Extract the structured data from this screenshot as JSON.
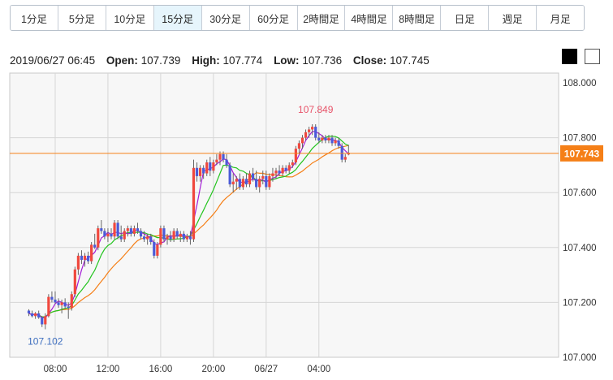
{
  "tabs": [
    {
      "label": "1分足",
      "active": false
    },
    {
      "label": "5分足",
      "active": false
    },
    {
      "label": "10分足",
      "active": false
    },
    {
      "label": "15分足",
      "active": true
    },
    {
      "label": "30分足",
      "active": false
    },
    {
      "label": "60分足",
      "active": false
    },
    {
      "label": "2時間足",
      "active": false
    },
    {
      "label": "4時間足",
      "active": false
    },
    {
      "label": "8時間足",
      "active": false
    },
    {
      "label": "日足",
      "active": false
    },
    {
      "label": "週足",
      "active": false
    },
    {
      "label": "月足",
      "active": false
    }
  ],
  "ohlc": {
    "datetime": "2019/06/27 06:45",
    "open_label": "Open:",
    "open": "107.739",
    "high_label": "High:",
    "high": "107.774",
    "low_label": "Low:",
    "low": "107.736",
    "close_label": "Close:",
    "close": "107.745"
  },
  "background_toggle": [
    "black",
    "white"
  ],
  "chart_data": {
    "type": "candlestick",
    "ylim": [
      107.0,
      108.0
    ],
    "y_ticks": [
      "107.000",
      "107.200",
      "107.400",
      "107.600",
      "107.800",
      "108.000"
    ],
    "x_ticks": [
      {
        "label": "08:00",
        "index": 8
      },
      {
        "label": "12:00",
        "index": 24
      },
      {
        "label": "16:00",
        "index": 40
      },
      {
        "label": "20:00",
        "index": 56
      },
      {
        "label": "06/27",
        "index": 72
      },
      {
        "label": "04:00",
        "index": 88
      }
    ],
    "current_price": {
      "label": "107.743",
      "value": 107.743
    },
    "annotations": [
      {
        "text": "107.849",
        "value": 107.849,
        "index": 87,
        "color": "#e8546a"
      },
      {
        "text": "107.102",
        "value": 107.102,
        "index": 5,
        "color": "#3f6fbf"
      }
    ],
    "colors": {
      "up": "#f0483e",
      "down": "#4b5bd8",
      "ma_short": "#a41ed6",
      "ma_mid": "#23c41e",
      "ma_long": "#f57f17",
      "price_line": "#f57f17"
    },
    "x_start_index": -0.5,
    "candles": [
      [
        107.17,
        107.175,
        107.15,
        107.16
      ],
      [
        107.16,
        107.17,
        107.145,
        107.15
      ],
      [
        107.15,
        107.165,
        107.14,
        107.16
      ],
      [
        107.16,
        107.17,
        107.14,
        107.145
      ],
      [
        107.145,
        107.15,
        107.11,
        107.12
      ],
      [
        107.12,
        107.16,
        107.102,
        107.15
      ],
      [
        107.15,
        107.23,
        107.145,
        107.22
      ],
      [
        107.22,
        107.24,
        107.2,
        107.21
      ],
      [
        107.21,
        107.24,
        107.195,
        107.2
      ],
      [
        107.2,
        107.215,
        107.18,
        107.19
      ],
      [
        107.19,
        107.21,
        107.16,
        107.2
      ],
      [
        107.2,
        107.215,
        107.175,
        107.185
      ],
      [
        107.185,
        107.2,
        107.14,
        107.18
      ],
      [
        107.18,
        107.24,
        107.17,
        107.23
      ],
      [
        107.23,
        107.33,
        107.22,
        107.32
      ],
      [
        107.32,
        107.38,
        107.3,
        107.37
      ],
      [
        107.37,
        107.39,
        107.34,
        107.355
      ],
      [
        107.355,
        107.38,
        107.33,
        107.37
      ],
      [
        107.37,
        107.385,
        107.34,
        107.35
      ],
      [
        107.35,
        107.42,
        107.34,
        107.41
      ],
      [
        107.41,
        107.45,
        107.395,
        107.4
      ],
      [
        107.4,
        107.48,
        107.39,
        107.47
      ],
      [
        107.47,
        107.5,
        107.45,
        107.46
      ],
      [
        107.46,
        107.47,
        107.43,
        107.44
      ],
      [
        107.44,
        107.47,
        107.42,
        107.45
      ],
      [
        107.45,
        107.47,
        107.43,
        107.44
      ],
      [
        107.44,
        107.5,
        107.43,
        107.49
      ],
      [
        107.49,
        107.5,
        107.43,
        107.44
      ],
      [
        107.44,
        107.48,
        107.42,
        107.43
      ],
      [
        107.43,
        107.47,
        107.42,
        107.46
      ],
      [
        107.46,
        107.48,
        107.44,
        107.47
      ],
      [
        107.47,
        107.48,
        107.44,
        107.45
      ],
      [
        107.45,
        107.48,
        107.44,
        107.47
      ],
      [
        107.47,
        107.49,
        107.45,
        107.46
      ],
      [
        107.46,
        107.47,
        107.43,
        107.44
      ],
      [
        107.44,
        107.46,
        107.42,
        107.43
      ],
      [
        107.43,
        107.45,
        107.41,
        107.44
      ],
      [
        107.44,
        107.45,
        107.41,
        107.42
      ],
      [
        107.42,
        107.43,
        107.36,
        107.37
      ],
      [
        107.37,
        107.42,
        107.36,
        107.41
      ],
      [
        107.41,
        107.48,
        107.4,
        107.47
      ],
      [
        107.47,
        107.48,
        107.42,
        107.43
      ],
      [
        107.43,
        107.45,
        107.41,
        107.44
      ],
      [
        107.44,
        107.46,
        107.42,
        107.43
      ],
      [
        107.43,
        107.47,
        107.42,
        107.46
      ],
      [
        107.46,
        107.47,
        107.43,
        107.44
      ],
      [
        107.44,
        107.46,
        107.42,
        107.45
      ],
      [
        107.45,
        107.46,
        107.42,
        107.43
      ],
      [
        107.43,
        107.45,
        107.42,
        107.44
      ],
      [
        107.44,
        107.46,
        107.41,
        107.43
      ],
      [
        107.43,
        107.72,
        107.42,
        107.69
      ],
      [
        107.69,
        107.71,
        107.64,
        107.66
      ],
      [
        107.66,
        107.7,
        107.64,
        107.69
      ],
      [
        107.69,
        107.7,
        107.65,
        107.67
      ],
      [
        107.67,
        107.72,
        107.66,
        107.71
      ],
      [
        107.71,
        107.73,
        107.66,
        107.68
      ],
      [
        107.68,
        107.72,
        107.67,
        107.71
      ],
      [
        107.71,
        107.74,
        107.7,
        107.72
      ],
      [
        107.72,
        107.75,
        107.7,
        107.74
      ],
      [
        107.74,
        107.75,
        107.71,
        107.72
      ],
      [
        107.72,
        107.74,
        107.69,
        107.7
      ],
      [
        107.7,
        107.71,
        107.62,
        107.63
      ],
      [
        107.63,
        107.67,
        107.6,
        107.64
      ],
      [
        107.64,
        107.66,
        107.61,
        107.65
      ],
      [
        107.65,
        107.67,
        107.61,
        107.62
      ],
      [
        107.62,
        107.66,
        107.61,
        107.65
      ],
      [
        107.65,
        107.67,
        107.62,
        107.63
      ],
      [
        107.63,
        107.68,
        107.62,
        107.67
      ],
      [
        107.67,
        107.69,
        107.64,
        107.65
      ],
      [
        107.65,
        107.68,
        107.61,
        107.62
      ],
      [
        107.62,
        107.66,
        107.6,
        107.65
      ],
      [
        107.65,
        107.68,
        107.63,
        107.66
      ],
      [
        107.66,
        107.68,
        107.61,
        107.62
      ],
      [
        107.62,
        107.67,
        107.61,
        107.66
      ],
      [
        107.66,
        107.69,
        107.64,
        107.67
      ],
      [
        107.67,
        107.69,
        107.65,
        107.68
      ],
      [
        107.68,
        107.7,
        107.66,
        107.67
      ],
      [
        107.67,
        107.7,
        107.66,
        107.69
      ],
      [
        107.69,
        107.7,
        107.67,
        107.68
      ],
      [
        107.68,
        107.71,
        107.67,
        107.7
      ],
      [
        107.7,
        107.72,
        107.69,
        107.71
      ],
      [
        107.71,
        107.77,
        107.7,
        107.76
      ],
      [
        107.76,
        107.79,
        107.74,
        107.78
      ],
      [
        107.78,
        107.81,
        107.76,
        107.8
      ],
      [
        107.8,
        107.83,
        107.79,
        107.82
      ],
      [
        107.82,
        107.84,
        107.8,
        107.83
      ],
      [
        107.83,
        107.849,
        107.81,
        107.84
      ],
      [
        107.84,
        107.849,
        107.79,
        107.8
      ],
      [
        107.8,
        107.82,
        107.78,
        107.79
      ],
      [
        107.79,
        107.81,
        107.78,
        107.8
      ],
      [
        107.8,
        107.81,
        107.78,
        107.79
      ],
      [
        107.79,
        107.81,
        107.78,
        107.8
      ],
      [
        107.8,
        107.81,
        107.77,
        107.78
      ],
      [
        107.78,
        107.8,
        107.77,
        107.79
      ],
      [
        107.79,
        107.8,
        107.76,
        107.77
      ],
      [
        107.77,
        107.78,
        107.71,
        107.72
      ],
      [
        107.72,
        107.74,
        107.71,
        107.73
      ],
      [
        107.739,
        107.774,
        107.736,
        107.745
      ]
    ]
  }
}
